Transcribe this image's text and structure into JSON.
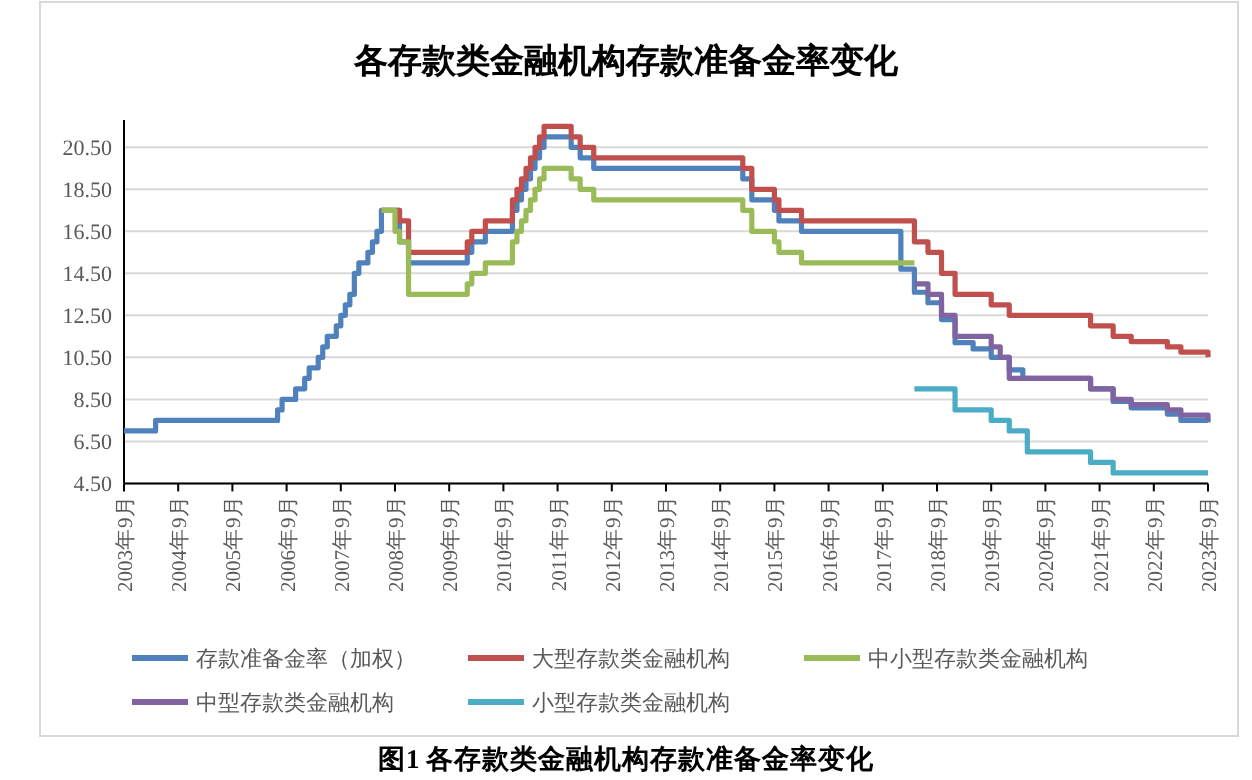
{
  "chart_data": {
    "type": "step",
    "title": "各存款类金融机构存款准备金率变化",
    "annotations": [
      "图1  各存款类金融机构存款准备金率变化"
    ],
    "xlim": [
      "2003-09",
      "2023-09"
    ],
    "xticks": [
      {
        "value": "2003-09",
        "label": "2003年9月"
      },
      {
        "value": "2004-09",
        "label": "2004年9月"
      },
      {
        "value": "2005-09",
        "label": "2005年9月"
      },
      {
        "value": "2006-09",
        "label": "2006年9月"
      },
      {
        "value": "2007-09",
        "label": "2007年9月"
      },
      {
        "value": "2008-09",
        "label": "2008年9月"
      },
      {
        "value": "2009-09",
        "label": "2009年9月"
      },
      {
        "value": "2010-09",
        "label": "2010年9月"
      },
      {
        "value": "2011-09",
        "label": "2011年9月"
      },
      {
        "value": "2012-09",
        "label": "2012年9月"
      },
      {
        "value": "2013-09",
        "label": "2013年9月"
      },
      {
        "value": "2014-09",
        "label": "2014年9月"
      },
      {
        "value": "2015-09",
        "label": "2015年9月"
      },
      {
        "value": "2016-09",
        "label": "2016年9月"
      },
      {
        "value": "2017-09",
        "label": "2017年9月"
      },
      {
        "value": "2018-09",
        "label": "2018年9月"
      },
      {
        "value": "2019-09",
        "label": "2019年9月"
      },
      {
        "value": "2020-09",
        "label": "2020年9月"
      },
      {
        "value": "2021-09",
        "label": "2021年9月"
      },
      {
        "value": "2022-09",
        "label": "2022年9月"
      },
      {
        "value": "2023-09",
        "label": "2023年9月"
      }
    ],
    "ylim": [
      4.5,
      21.8
    ],
    "yticks": [
      {
        "value": 4.5,
        "label": "4.50"
      },
      {
        "value": 6.5,
        "label": "6.50"
      },
      {
        "value": 8.5,
        "label": "8.50"
      },
      {
        "value": 10.5,
        "label": "10.50"
      },
      {
        "value": 12.5,
        "label": "12.50"
      },
      {
        "value": 14.5,
        "label": "14.50"
      },
      {
        "value": 16.5,
        "label": "16.50"
      },
      {
        "value": 18.5,
        "label": "18.50"
      },
      {
        "value": 20.5,
        "label": "20.50"
      }
    ],
    "grid": "y",
    "legend": "bottom",
    "series": [
      {
        "name": "存款准备金率（加权）",
        "color": "#4f81bd",
        "x": [
          "2003-09",
          "2004-04",
          "2006-07",
          "2006-08",
          "2006-11",
          "2007-01",
          "2007-02",
          "2007-04",
          "2007-05",
          "2007-06",
          "2007-08",
          "2007-09",
          "2007-10",
          "2007-11",
          "2007-12",
          "2008-01",
          "2008-03",
          "2008-04",
          "2008-05",
          "2008-06",
          "2008-10",
          "2008-12",
          "2010-01",
          "2010-02",
          "2010-05",
          "2010-11",
          "2010-12",
          "2011-01",
          "2011-02",
          "2011-03",
          "2011-04",
          "2011-05",
          "2011-06",
          "2011-12",
          "2012-02",
          "2012-05",
          "2015-02",
          "2015-04",
          "2015-09",
          "2015-10",
          "2016-03",
          "2018-01",
          "2018-04",
          "2018-07",
          "2018-10",
          "2019-01",
          "2019-05",
          "2019-09",
          "2020-01",
          "2020-04",
          "2021-07",
          "2021-12",
          "2022-04",
          "2022-12",
          "2023-03",
          "2023-09"
        ],
        "values": [
          7.0,
          7.5,
          8.0,
          8.5,
          9.0,
          9.5,
          10.0,
          10.5,
          11.0,
          11.5,
          12.0,
          12.5,
          13.0,
          13.5,
          14.5,
          15.0,
          15.5,
          16.0,
          16.5,
          17.5,
          16.0,
          15.0,
          15.5,
          16.0,
          16.5,
          17.5,
          18.0,
          18.5,
          19.0,
          19.5,
          20.0,
          20.5,
          21.0,
          20.5,
          20.0,
          19.5,
          19.0,
          18.0,
          17.5,
          17.0,
          16.5,
          14.7,
          13.6,
          13.1,
          12.3,
          11.2,
          10.9,
          10.5,
          9.9,
          9.5,
          9.0,
          8.4,
          8.1,
          7.8,
          7.5,
          7.4
        ]
      },
      {
        "name": "大型存款类金融机构",
        "color": "#c0504d",
        "x": [
          "2008-06",
          "2008-10",
          "2008-12",
          "2010-01",
          "2010-02",
          "2010-05",
          "2010-11",
          "2010-12",
          "2011-01",
          "2011-02",
          "2011-03",
          "2011-04",
          "2011-05",
          "2011-06",
          "2011-12",
          "2012-02",
          "2012-05",
          "2015-02",
          "2015-04",
          "2015-09",
          "2015-10",
          "2016-03",
          "2018-04",
          "2018-07",
          "2018-10",
          "2019-01",
          "2019-09",
          "2020-01",
          "2021-07",
          "2021-12",
          "2022-04",
          "2022-12",
          "2023-03",
          "2023-09"
        ],
        "values": [
          17.5,
          17.0,
          15.5,
          16.0,
          16.5,
          17.0,
          18.0,
          18.5,
          19.0,
          19.5,
          20.0,
          20.5,
          21.0,
          21.5,
          21.0,
          20.5,
          20.0,
          19.5,
          18.5,
          18.0,
          17.5,
          17.0,
          16.0,
          15.5,
          14.5,
          13.5,
          13.0,
          12.5,
          12.0,
          11.5,
          11.25,
          11.0,
          10.75,
          10.5
        ]
      },
      {
        "name": "中小型存款类金融机构",
        "color": "#9bbb59",
        "x": [
          "2008-06",
          "2008-09",
          "2008-10",
          "2008-12",
          "2010-01",
          "2010-02",
          "2010-05",
          "2010-11",
          "2010-12",
          "2011-01",
          "2011-02",
          "2011-03",
          "2011-04",
          "2011-05",
          "2011-06",
          "2011-12",
          "2012-02",
          "2012-05",
          "2015-02",
          "2015-04",
          "2015-09",
          "2015-10",
          "2016-03",
          "2018-04"
        ],
        "values": [
          17.5,
          16.5,
          16.0,
          13.5,
          14.0,
          14.5,
          15.0,
          16.0,
          16.5,
          17.0,
          17.5,
          18.0,
          18.5,
          19.0,
          19.5,
          19.0,
          18.5,
          18.0,
          17.5,
          16.5,
          16.0,
          15.5,
          15.0,
          15.0
        ]
      },
      {
        "name": "中型存款类金融机构",
        "color": "#8064a2",
        "x": [
          "2018-04",
          "2018-07",
          "2018-10",
          "2019-01",
          "2019-09",
          "2019-11",
          "2020-01",
          "2021-07",
          "2021-12",
          "2022-04",
          "2022-12",
          "2023-03",
          "2023-09"
        ],
        "values": [
          14.0,
          13.5,
          12.5,
          11.5,
          11.0,
          10.5,
          9.5,
          9.0,
          8.5,
          8.25,
          8.0,
          7.75,
          7.5
        ]
      },
      {
        "name": "小型存款类金融机构",
        "color": "#4bacc6",
        "x": [
          "2018-04",
          "2019-01",
          "2019-09",
          "2020-01",
          "2020-05",
          "2021-07",
          "2021-12",
          "2023-09"
        ],
        "values": [
          9.0,
          8.0,
          7.5,
          7.0,
          6.0,
          5.5,
          5.0,
          5.0
        ]
      }
    ]
  }
}
